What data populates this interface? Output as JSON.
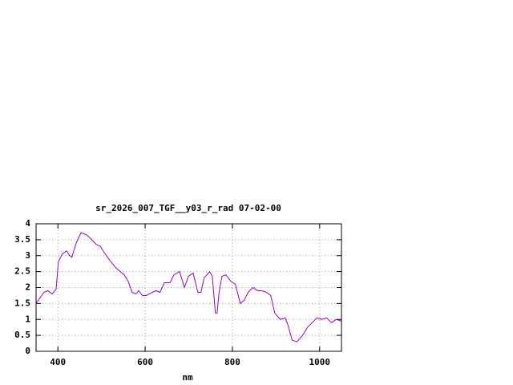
{
  "chart_data": {
    "type": "line",
    "title": "sr_2026_007_TGF__y03_r_rad 07-02-00",
    "x_label": "nm",
    "xlim": [
      350,
      1050
    ],
    "xticks": [
      400,
      600,
      800,
      1000
    ],
    "ylim": [
      0,
      4
    ],
    "yticks": [
      0,
      0.5,
      1,
      1.5,
      2,
      2.5,
      3,
      3.5,
      4
    ],
    "grid": true,
    "x": [
      350,
      368,
      377,
      387,
      396,
      401,
      410,
      420,
      427,
      432,
      442,
      453,
      466,
      478,
      488,
      497,
      506,
      519,
      534,
      552,
      561,
      570,
      579,
      585,
      594,
      603,
      616,
      625,
      634,
      644,
      657,
      666,
      679,
      690,
      699,
      710,
      721,
      728,
      735,
      748,
      754,
      761,
      765,
      769,
      776,
      785,
      796,
      807,
      818,
      827,
      836,
      847,
      858,
      867,
      878,
      888,
      897,
      910,
      921,
      928,
      937,
      948,
      961,
      972,
      983,
      994,
      1005,
      1016,
      1027,
      1038,
      1049
    ],
    "series": [
      {
        "color": "#9400d3",
        "values": [
          1.5,
          1.85,
          1.9,
          1.8,
          1.95,
          2.8,
          3.05,
          3.15,
          3.0,
          2.95,
          3.4,
          3.72,
          3.65,
          3.5,
          3.35,
          3.3,
          3.1,
          2.85,
          2.6,
          2.4,
          2.2,
          1.85,
          1.8,
          1.9,
          1.75,
          1.75,
          1.85,
          1.9,
          1.85,
          2.15,
          2.15,
          2.4,
          2.5,
          2.0,
          2.35,
          2.45,
          1.85,
          1.85,
          2.3,
          2.5,
          2.35,
          1.2,
          1.2,
          1.8,
          2.35,
          2.4,
          2.2,
          2.1,
          1.5,
          1.6,
          1.85,
          2.0,
          1.9,
          1.9,
          1.85,
          1.75,
          1.2,
          1.0,
          1.05,
          0.8,
          0.35,
          0.3,
          0.5,
          0.75,
          0.9,
          1.05,
          1.0,
          1.05,
          0.9,
          1.0,
          0.95
        ]
      }
    ]
  }
}
